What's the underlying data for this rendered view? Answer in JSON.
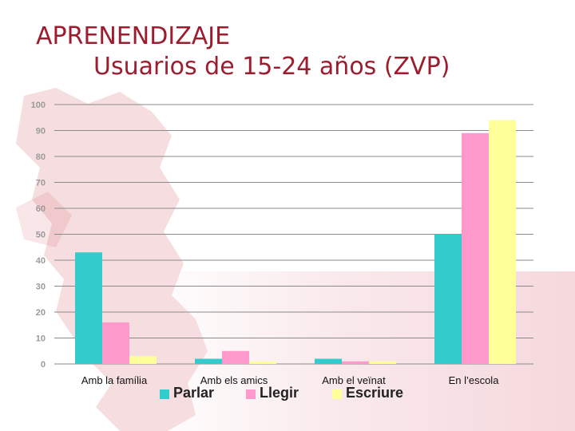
{
  "slide": {
    "title_line1": "APRENENDIZAJE",
    "title_line2": "Usuarios de 15-24 años (ZVP)"
  },
  "chart_data": {
    "type": "bar",
    "categories": [
      "Amb la família",
      "Amb els amics",
      "Amb el veïnat",
      "En l’escola"
    ],
    "series": [
      {
        "name": "Parlar",
        "color": "#33cccc",
        "values": [
          43,
          2,
          2,
          50
        ]
      },
      {
        "name": "Llegir",
        "color": "#ff99cc",
        "values": [
          16,
          5,
          1,
          89
        ]
      },
      {
        "name": "Escriure",
        "color": "#ffff99",
        "values": [
          3,
          1,
          1,
          94
        ]
      }
    ],
    "ylim": [
      0,
      100
    ],
    "yticks": [
      0,
      10,
      20,
      30,
      40,
      50,
      60,
      70,
      80,
      90,
      100
    ],
    "grid": true,
    "legend_position": "bottom"
  }
}
